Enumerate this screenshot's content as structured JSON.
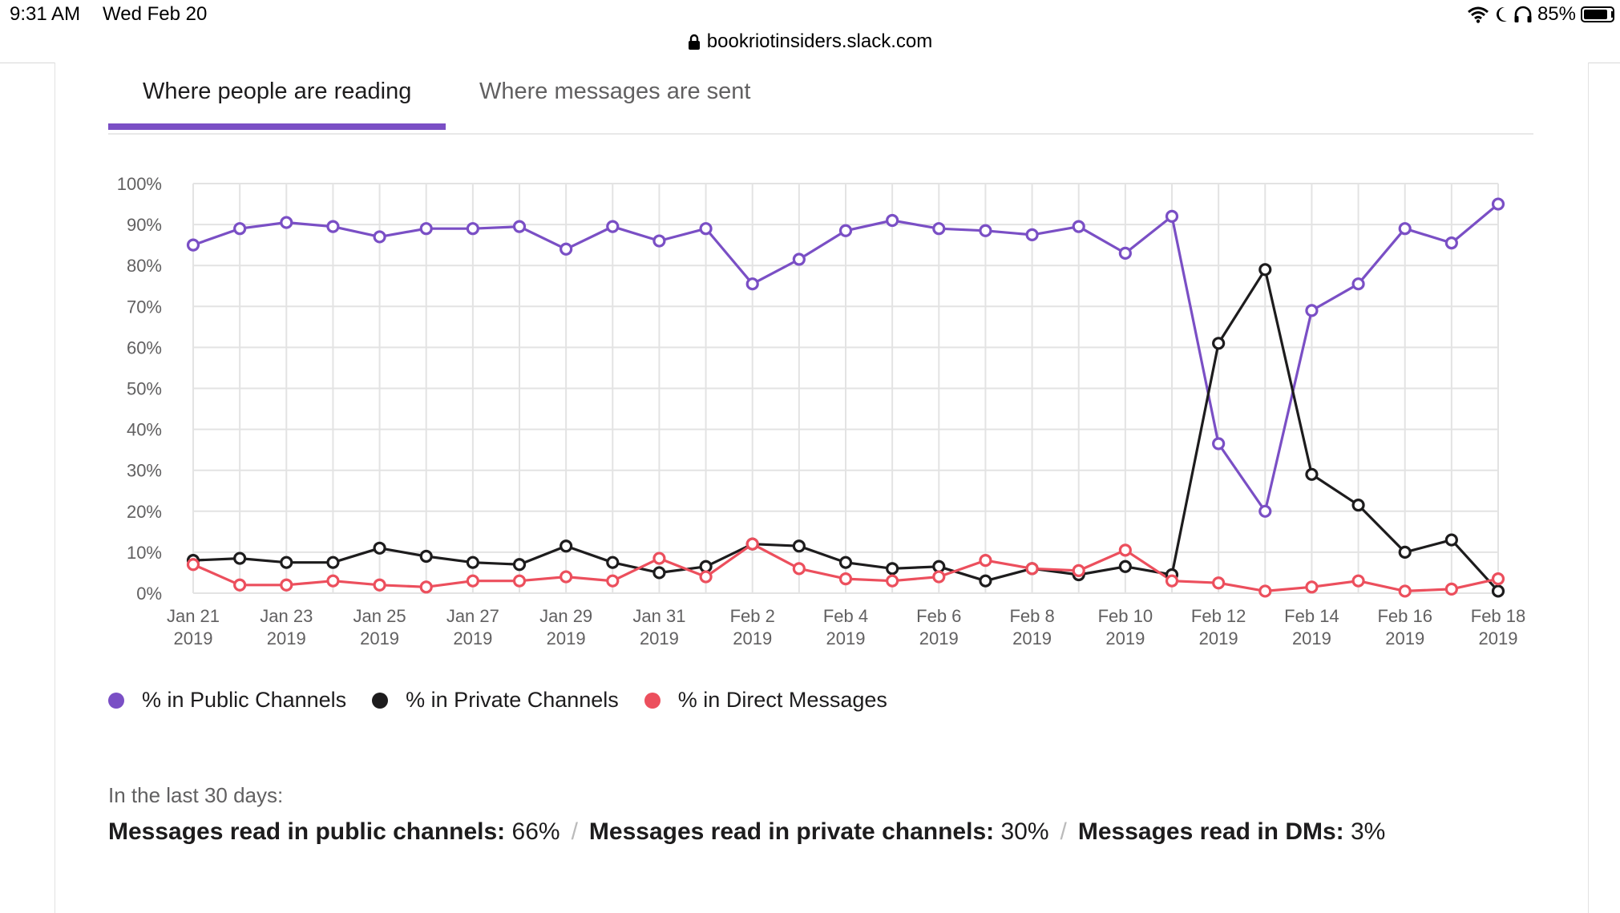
{
  "status_bar": {
    "time": "9:31 AM",
    "date": "Wed Feb 20",
    "url": "bookriotinsiders.slack.com",
    "battery": "85%",
    "battery_level": 0.85,
    "icons": [
      "wifi-icon",
      "moon-icon",
      "headphones-icon",
      "battery-icon",
      "lock-icon"
    ]
  },
  "tabs": [
    {
      "label": "Where people are reading",
      "active": true
    },
    {
      "label": "Where messages are sent",
      "active": false
    }
  ],
  "colors": {
    "public": "#7a4fc5",
    "private": "#1d1c1d",
    "dm": "#ec4f5d",
    "accent": "#7a4fc5",
    "grid": "#e3e3e3"
  },
  "chart_data": {
    "type": "line",
    "title": "",
    "xlabel": "",
    "ylabel": "",
    "ylim": [
      0,
      100
    ],
    "y_ticks": [
      "0%",
      "10%",
      "20%",
      "30%",
      "40%",
      "50%",
      "60%",
      "70%",
      "80%",
      "90%",
      "100%"
    ],
    "grid": true,
    "x": [
      "Jan 21 2019",
      "Jan 22 2019",
      "Jan 23 2019",
      "Jan 24 2019",
      "Jan 25 2019",
      "Jan 26 2019",
      "Jan 27 2019",
      "Jan 28 2019",
      "Jan 29 2019",
      "Jan 30 2019",
      "Jan 31 2019",
      "Feb 1 2019",
      "Feb 2 2019",
      "Feb 3 2019",
      "Feb 4 2019",
      "Feb 5 2019",
      "Feb 6 2019",
      "Feb 7 2019",
      "Feb 8 2019",
      "Feb 9 2019",
      "Feb 10 2019",
      "Feb 11 2019",
      "Feb 12 2019",
      "Feb 13 2019",
      "Feb 14 2019",
      "Feb 15 2019",
      "Feb 16 2019",
      "Feb 17 2019",
      "Feb 18 2019"
    ],
    "x_tick_labels": [
      {
        "index": 0,
        "line1": "Jan 21",
        "line2": "2019"
      },
      {
        "index": 2,
        "line1": "Jan 23",
        "line2": "2019"
      },
      {
        "index": 4,
        "line1": "Jan 25",
        "line2": "2019"
      },
      {
        "index": 6,
        "line1": "Jan 27",
        "line2": "2019"
      },
      {
        "index": 8,
        "line1": "Jan 29",
        "line2": "2019"
      },
      {
        "index": 10,
        "line1": "Jan 31",
        "line2": "2019"
      },
      {
        "index": 12,
        "line1": "Feb 2",
        "line2": "2019"
      },
      {
        "index": 14,
        "line1": "Feb 4",
        "line2": "2019"
      },
      {
        "index": 16,
        "line1": "Feb 6",
        "line2": "2019"
      },
      {
        "index": 18,
        "line1": "Feb 8",
        "line2": "2019"
      },
      {
        "index": 20,
        "line1": "Feb 10",
        "line2": "2019"
      },
      {
        "index": 22,
        "line1": "Feb 12",
        "line2": "2019"
      },
      {
        "index": 24,
        "line1": "Feb 14",
        "line2": "2019"
      },
      {
        "index": 26,
        "line1": "Feb 16",
        "line2": "2019"
      },
      {
        "index": 28,
        "line1": "Feb 18",
        "line2": "2019"
      }
    ],
    "series": [
      {
        "name": "% in Public Channels",
        "key": "public",
        "values": [
          85,
          89,
          90.5,
          89.5,
          87,
          89,
          89,
          89.5,
          84,
          89.5,
          86,
          89,
          75.5,
          81.5,
          88.5,
          91,
          89,
          88.5,
          87.5,
          89.5,
          83,
          92,
          36.5,
          20,
          69,
          75.5,
          89,
          85.5,
          95
        ]
      },
      {
        "name": "% in Private Channels",
        "key": "private",
        "values": [
          8,
          8.5,
          7.5,
          7.5,
          11,
          9,
          7.5,
          7,
          11.5,
          7.5,
          5,
          6.5,
          12,
          11.5,
          7.5,
          6,
          6.5,
          3,
          6,
          4.5,
          6.5,
          4.5,
          61,
          79,
          29,
          21.5,
          10,
          13,
          0.5
        ]
      },
      {
        "name": "% in Direct Messages",
        "key": "dm",
        "values": [
          7,
          2,
          2,
          3,
          2,
          1.5,
          3,
          3,
          4,
          3,
          8.5,
          4,
          12,
          6,
          3.5,
          3,
          4,
          8,
          6,
          5.5,
          10.5,
          3,
          2.5,
          0.5,
          1.5,
          3,
          0.5,
          1,
          3.5
        ]
      }
    ]
  },
  "summary": {
    "intro": "In the last 30 days:",
    "items": [
      {
        "label": "Messages read in public channels:",
        "value": "66%"
      },
      {
        "label": "Messages read in private channels:",
        "value": "30%"
      },
      {
        "label": "Messages read in DMs:",
        "value": "3%"
      }
    ],
    "separator": "/"
  }
}
